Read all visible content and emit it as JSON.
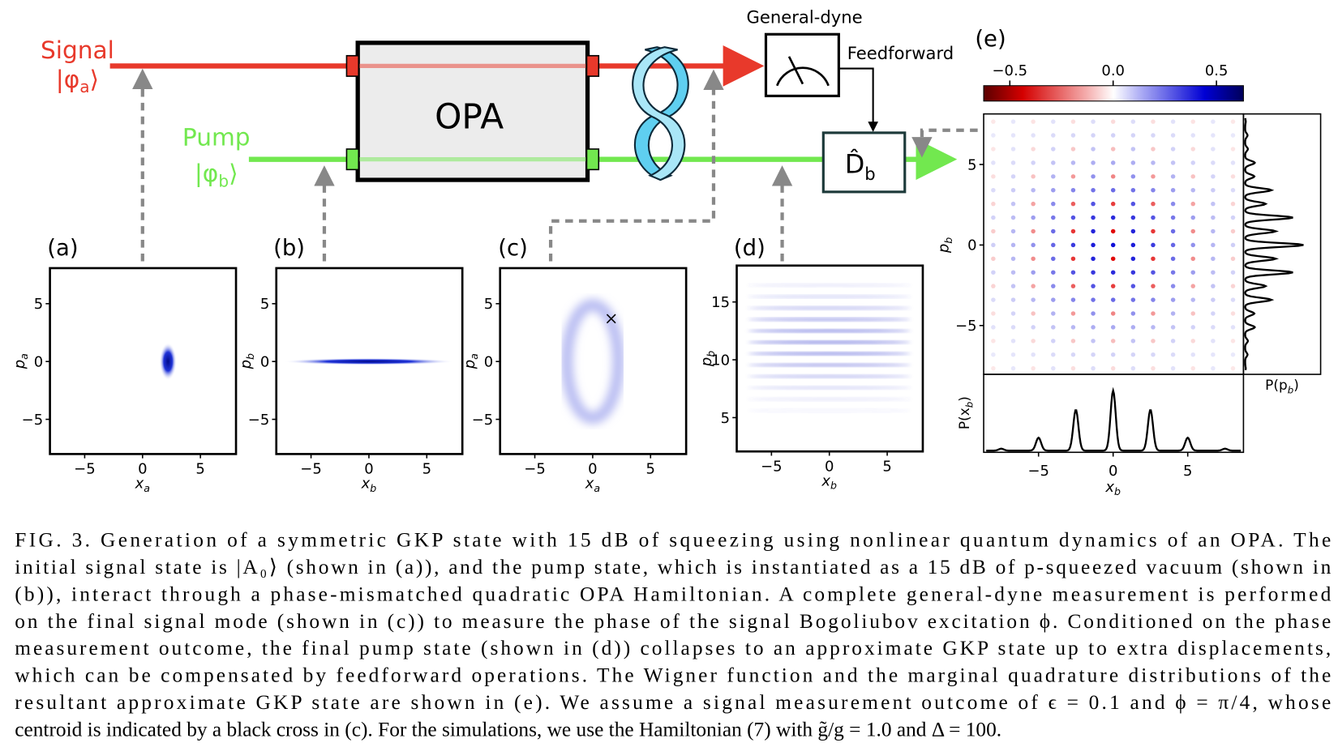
{
  "figure": {
    "signal": {
      "name": "Signal",
      "ket": {
        "open": "|φ",
        "sub": "a",
        "close": "⟩"
      }
    },
    "pump": {
      "name": "Pump",
      "ket": {
        "open": "|φ",
        "sub": "b",
        "close": "⟩"
      }
    },
    "opa": "OPA",
    "general_dyne": "General-dyne",
    "feedforward": "Feedforward",
    "displacement": {
      "main": "D̂",
      "sub": "b"
    },
    "panels": [
      {
        "label": "(a)",
        "xticks": [
          "−5",
          "0",
          "5"
        ],
        "yticks": [
          "5",
          "0",
          "−5"
        ],
        "xlabel": {
          "main": "x",
          "sub": "a"
        },
        "ylabel": {
          "main": "p",
          "sub": "a"
        }
      },
      {
        "label": "(b)",
        "xticks": [
          "−5",
          "0",
          "5"
        ],
        "yticks": [
          "5",
          "0",
          "−5"
        ],
        "xlabel": {
          "main": "x",
          "sub": "b"
        },
        "ylabel": {
          "main": "p",
          "sub": "b"
        }
      },
      {
        "label": "(c)",
        "xticks": [
          "−5",
          "0",
          "5"
        ],
        "yticks": [
          "5",
          "0",
          "−5"
        ],
        "xlabel": {
          "main": "x",
          "sub": "a"
        },
        "ylabel": {
          "main": "p",
          "sub": "a"
        }
      },
      {
        "label": "(d)",
        "xticks": [
          "−5",
          "0",
          "5"
        ],
        "yticks": [
          "15",
          "10",
          "5"
        ],
        "xlabel": {
          "main": "x",
          "sub": "b"
        },
        "ylabel": {
          "main": "p",
          "sub": "b"
        }
      },
      {
        "label": "(e)",
        "xticks": [
          "−5",
          "0",
          "5"
        ],
        "yticks": [
          "5",
          "0",
          "−5"
        ],
        "xlabel": {
          "main": "x",
          "sub": "b"
        },
        "ylabel": {
          "main": "p",
          "sub": "b"
        },
        "colorbar_ticks": [
          "−0.5",
          "0.0",
          "0.5"
        ],
        "marginal_p": {
          "open": "P(p",
          "sub": "b",
          "close": ")"
        },
        "marginal_x": {
          "open": "P(x",
          "sub": "b",
          "close": ")"
        }
      }
    ]
  },
  "caption": {
    "lines": [
      "FIG. 3.  Generation of a symmetric GKP state with 15 dB of squeezing using nonlinear quantum dynamics of an OPA. The",
      "initial signal state is |A₀⟩ (shown in (a)), and the pump state, which is instantiated as a 15 dB of p-squeezed vacuum (shown in",
      "(b)), interact through a phase-mismatched quadratic OPA Hamiltonian.  A complete general-dyne measurement is performed",
      "on the final signal mode (shown in (c)) to measure the phase of the signal Bogoliubov excitation ϕ. Conditioned on the phase",
      "measurement outcome, the final pump state (shown in (d)) collapses to an approximate GKP state up to extra displacements,",
      "which can be compensated by feedforward operations.  The Wigner function and the marginal quadrature distributions of the",
      "resultant approximate GKP state are shown in (e).  We assume a signal measurement outcome of ϵ = 0.1 and ϕ = π/4, whose",
      "centroid is indicated by a black cross in (c). For the simulations, we use the Hamiltonian (7) with g̃/g = 1.0 and Δ = 100."
    ]
  }
}
